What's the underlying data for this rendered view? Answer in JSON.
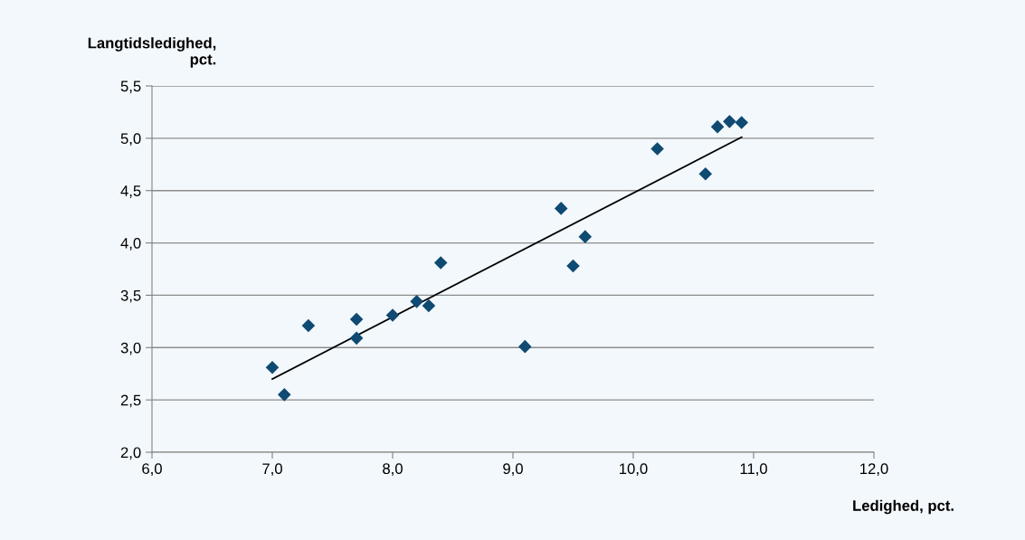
{
  "chart_data": {
    "type": "scatter",
    "xlabel": "Ledighed, pct.",
    "ylabel": "Langtidsledighed,\npct.",
    "xlim": [
      6.0,
      12.0
    ],
    "xticks": [
      {
        "value": 6.0,
        "label": "6,0"
      },
      {
        "value": 7.0,
        "label": "7,0"
      },
      {
        "value": 8.0,
        "label": "8,0"
      },
      {
        "value": 9.0,
        "label": "9,0"
      },
      {
        "value": 10.0,
        "label": "10,0"
      },
      {
        "value": 11.0,
        "label": "11,0"
      },
      {
        "value": 12.0,
        "label": "12,0"
      }
    ],
    "ylim": [
      2.0,
      5.5
    ],
    "yticks": [
      {
        "value": 2.0,
        "label": "2,0"
      },
      {
        "value": 2.5,
        "label": "2,5"
      },
      {
        "value": 3.0,
        "label": "3,0"
      },
      {
        "value": 3.5,
        "label": "3,5"
      },
      {
        "value": 4.0,
        "label": "4,0"
      },
      {
        "value": 4.5,
        "label": "4,5"
      },
      {
        "value": 5.0,
        "label": "5,0"
      },
      {
        "value": 5.5,
        "label": "5,5"
      }
    ],
    "grid": "y",
    "marker": "diamond",
    "legend": false,
    "series": [
      {
        "color": "#0e4a72",
        "x": [
          7.0,
          7.1,
          7.3,
          7.7,
          7.7,
          8.0,
          8.2,
          8.3,
          8.4,
          9.1,
          9.4,
          9.5,
          9.6,
          10.2,
          10.6,
          10.7,
          10.8,
          10.9
        ],
        "values": [
          2.81,
          2.55,
          3.21,
          3.27,
          3.09,
          3.31,
          3.44,
          3.4,
          3.81,
          3.01,
          4.33,
          3.78,
          4.06,
          4.9,
          4.66,
          5.11,
          5.16,
          5.15
        ]
      },
      {
        "type": "line",
        "color": "#000000",
        "marker": "none",
        "x": [
          7.0,
          10.9
        ],
        "values": [
          2.7,
          5.01
        ]
      }
    ]
  }
}
